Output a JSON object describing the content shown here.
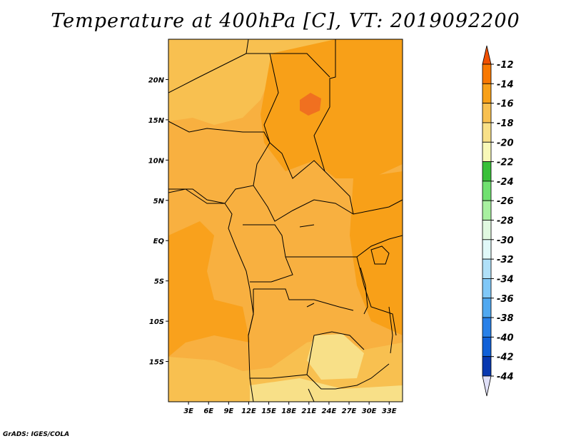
{
  "title": "Temperature at 400hPa [C], VT: 2019092200",
  "credit": "GrADS: IGES/COLA",
  "map": {
    "lon_range": [
      0,
      35
    ],
    "lat_range": [
      -20,
      25
    ],
    "lat_ticks": [
      "20N",
      "15N",
      "10N",
      "5N",
      "EQ",
      "5S",
      "10S",
      "15S"
    ],
    "lon_ticks": [
      "3E",
      "6E",
      "9E",
      "12E",
      "15E",
      "18E",
      "21E",
      "24E",
      "27E",
      "30E",
      "33E"
    ],
    "base_field_color": "#f8b040"
  },
  "colorbar": {
    "levels": [
      "-12",
      "-14",
      "-16",
      "-18",
      "-20",
      "-22",
      "-24",
      "-26",
      "-28",
      "-30",
      "-32",
      "-34",
      "-36",
      "-38",
      "-40",
      "-42",
      "-44"
    ],
    "colors": [
      "#f05000",
      "#f87800",
      "#f8a018",
      "#f8c050",
      "#f8e088",
      "#f8f8b8",
      "#38c038",
      "#70e070",
      "#a8f0a0",
      "#e0f8e0",
      "#e0f8f8",
      "#b0e0f8",
      "#80c8f8",
      "#50a8f0",
      "#2880e8",
      "#1060d8",
      "#0838b0",
      "#081070",
      "#e0e0f8"
    ]
  }
}
